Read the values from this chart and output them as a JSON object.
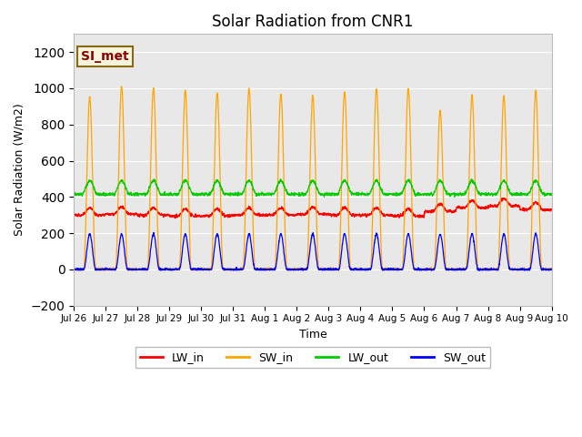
{
  "title": "Solar Radiation from CNR1",
  "xlabel": "Time",
  "ylabel": "Solar Radiation (W/m2)",
  "ylim": [
    -200,
    1300
  ],
  "yticks": [
    -200,
    0,
    200,
    400,
    600,
    800,
    1000,
    1200
  ],
  "background_color": "#ffffff",
  "plot_bg_color": "#e8e8e8",
  "grid_color": "#ffffff",
  "annotation_text": "SI_met",
  "annotation_color": "#8b0000",
  "annotation_bg": "#f5f5dc",
  "annotation_border": "#8b6914",
  "colors": {
    "LW_in": "#ff0000",
    "SW_in": "#ffa500",
    "LW_out": "#00cc00",
    "SW_out": "#0000ff"
  },
  "n_days": 15,
  "xtick_labels": [
    "Jul 26",
    "Jul 27",
    "Jul 28",
    "Jul 29",
    "Jul 30",
    "Jul 31",
    "Aug 1",
    "Aug 2",
    "Aug 3",
    "Aug 4",
    "Aug 5",
    "Aug 6",
    "Aug 7",
    "Aug 8",
    "Aug 9",
    "Aug 10"
  ]
}
